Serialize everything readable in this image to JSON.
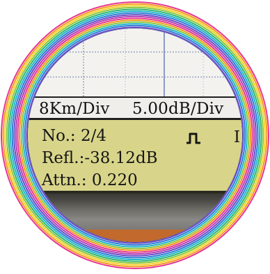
{
  "display": {
    "scale": {
      "distance": "8Km/Div",
      "level": "5.00dB/Div"
    },
    "info": {
      "number": "No.: 2/4",
      "reflection": "Refl.:-38.12dB",
      "attenuation": "Attn.:  0.220",
      "edge_char": "I"
    },
    "icons": {
      "event_type": "pulse-icon"
    }
  },
  "colors": {
    "panel_background": "#d8d58a",
    "grid_background": "#f3f2ee",
    "text": "#161616",
    "bezel_orange": "#c26a2d"
  }
}
